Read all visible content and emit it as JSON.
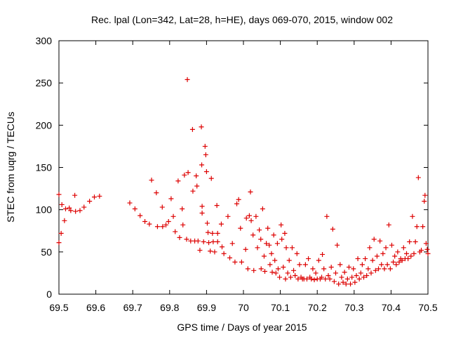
{
  "chart_data": {
    "type": "scatter",
    "title": "Rec. lpal (Lon=342, Lat=28, h=HE), days 069-070, 2015, window 002",
    "xlabel": "GPS time / Days of year 2015",
    "ylabel": "STEC from uqrg / TECUs",
    "xlim": [
      69.5,
      70.5
    ],
    "ylim": [
      0,
      300
    ],
    "xticks": [
      "69.5",
      "69.6",
      "69.7",
      "69.8",
      "69.9",
      "70",
      "70.1",
      "70.2",
      "70.3",
      "70.4",
      "70.5"
    ],
    "yticks": [
      "0",
      "50",
      "100",
      "150",
      "200",
      "250",
      "300"
    ],
    "grid": false,
    "legend": "none",
    "marker": "+",
    "color": "#dd0000",
    "series": [
      {
        "points": [
          [
            69.5,
            118
          ],
          [
            69.5,
            61
          ],
          [
            69.506,
            72
          ],
          [
            69.508,
            106
          ],
          [
            69.515,
            87
          ],
          [
            69.518,
            101
          ],
          [
            69.528,
            102
          ],
          [
            69.532,
            99
          ],
          [
            69.543,
            117
          ],
          [
            69.545,
            98
          ],
          [
            69.557,
            99
          ],
          [
            69.568,
            103
          ],
          [
            69.583,
            110
          ],
          [
            69.596,
            115
          ],
          [
            69.61,
            116
          ],
          [
            69.692,
            108
          ],
          [
            69.706,
            101
          ],
          [
            69.72,
            93
          ],
          [
            69.733,
            86
          ],
          [
            69.745,
            83
          ],
          [
            69.751,
            135
          ],
          [
            69.764,
            120
          ],
          [
            69.767,
            80
          ],
          [
            69.78,
            103
          ],
          [
            69.781,
            80
          ],
          [
            69.79,
            82
          ],
          [
            69.797,
            86
          ],
          [
            69.804,
            113
          ],
          [
            69.81,
            92
          ],
          [
            69.815,
            74
          ],
          [
            69.823,
            134
          ],
          [
            69.827,
            67
          ],
          [
            69.834,
            101
          ],
          [
            69.836,
            82
          ],
          [
            69.84,
            141
          ],
          [
            69.846,
            65
          ],
          [
            69.848,
            254
          ],
          [
            69.85,
            144
          ],
          [
            69.857,
            63
          ],
          [
            69.862,
            195
          ],
          [
            69.863,
            122
          ],
          [
            69.868,
            63
          ],
          [
            69.872,
            140
          ],
          [
            69.874,
            128
          ],
          [
            69.877,
            63
          ],
          [
            69.882,
            52
          ],
          [
            69.886,
            198
          ],
          [
            69.887,
            153
          ],
          [
            69.888,
            104
          ],
          [
            69.888,
            96
          ],
          [
            69.892,
            62
          ],
          [
            69.896,
            175
          ],
          [
            69.898,
            165
          ],
          [
            69.9,
            145
          ],
          [
            69.902,
            84
          ],
          [
            69.904,
            73
          ],
          [
            69.906,
            61
          ],
          [
            69.91,
            51
          ],
          [
            69.913,
            137
          ],
          [
            69.916,
            72
          ],
          [
            69.918,
            62
          ],
          [
            69.922,
            50
          ],
          [
            69.928,
            105
          ],
          [
            69.93,
            72
          ],
          [
            69.93,
            62
          ],
          [
            69.94,
            83
          ],
          [
            69.942,
            56
          ],
          [
            69.947,
            48
          ],
          [
            69.958,
            92
          ],
          [
            69.963,
            43
          ],
          [
            69.97,
            60
          ],
          [
            69.977,
            38
          ],
          [
            69.982,
            107
          ],
          [
            69.987,
            112
          ],
          [
            69.992,
            78
          ],
          [
            69.995,
            38
          ],
          [
            70.006,
            53
          ],
          [
            70.008,
            90
          ],
          [
            70.012,
            30
          ],
          [
            70.016,
            93
          ],
          [
            70.019,
            121
          ],
          [
            70.021,
            87
          ],
          [
            70.026,
            70
          ],
          [
            70.028,
            28
          ],
          [
            70.034,
            92
          ],
          [
            70.038,
            55
          ],
          [
            70.043,
            76
          ],
          [
            70.047,
            65
          ],
          [
            70.048,
            30
          ],
          [
            70.052,
            101
          ],
          [
            70.056,
            45
          ],
          [
            70.058,
            27
          ],
          [
            70.062,
            60
          ],
          [
            70.066,
            78
          ],
          [
            70.07,
            58
          ],
          [
            70.072,
            35
          ],
          [
            70.076,
            48
          ],
          [
            70.078,
            26
          ],
          [
            70.082,
            70
          ],
          [
            70.085,
            40
          ],
          [
            70.088,
            25
          ],
          [
            70.092,
            60
          ],
          [
            70.094,
            30
          ],
          [
            70.098,
            20
          ],
          [
            70.102,
            82
          ],
          [
            70.104,
            65
          ],
          [
            70.108,
            32
          ],
          [
            70.112,
            72
          ],
          [
            70.114,
            18
          ],
          [
            70.116,
            55
          ],
          [
            70.12,
            25
          ],
          [
            70.124,
            40
          ],
          [
            70.128,
            20
          ],
          [
            70.132,
            55
          ],
          [
            70.136,
            28
          ],
          [
            70.14,
            22
          ],
          [
            70.145,
            48
          ],
          [
            70.148,
            18
          ],
          [
            70.152,
            35
          ],
          [
            70.156,
            20
          ],
          [
            70.16,
            18
          ],
          [
            70.164,
            18
          ],
          [
            70.168,
            35
          ],
          [
            70.172,
            18
          ],
          [
            70.176,
            42
          ],
          [
            70.18,
            20
          ],
          [
            70.184,
            18
          ],
          [
            70.188,
            30
          ],
          [
            70.192,
            17
          ],
          [
            70.196,
            25
          ],
          [
            70.2,
            18
          ],
          [
            70.204,
            40
          ],
          [
            70.208,
            18
          ],
          [
            70.212,
            20
          ],
          [
            70.214,
            47
          ],
          [
            70.218,
            30
          ],
          [
            70.222,
            18
          ],
          [
            70.226,
            92
          ],
          [
            70.23,
            22
          ],
          [
            70.234,
            18
          ],
          [
            70.238,
            32
          ],
          [
            70.242,
            77
          ],
          [
            70.246,
            15
          ],
          [
            70.25,
            25
          ],
          [
            70.254,
            58
          ],
          [
            70.258,
            12
          ],
          [
            70.262,
            35
          ],
          [
            70.266,
            20
          ],
          [
            70.27,
            14
          ],
          [
            70.274,
            26
          ],
          [
            70.278,
            12
          ],
          [
            70.282,
            18
          ],
          [
            70.286,
            32
          ],
          [
            70.29,
            12
          ],
          [
            70.294,
            20
          ],
          [
            70.298,
            30
          ],
          [
            70.302,
            14
          ],
          [
            70.306,
            22
          ],
          [
            70.31,
            42
          ],
          [
            70.314,
            18
          ],
          [
            70.318,
            25
          ],
          [
            70.322,
            35
          ],
          [
            70.326,
            20
          ],
          [
            70.33,
            42
          ],
          [
            70.334,
            22
          ],
          [
            70.338,
            30
          ],
          [
            70.342,
            55
          ],
          [
            70.346,
            25
          ],
          [
            70.35,
            40
          ],
          [
            70.354,
            65
          ],
          [
            70.358,
            28
          ],
          [
            70.362,
            45
          ],
          [
            70.366,
            30
          ],
          [
            70.37,
            63
          ],
          [
            70.374,
            35
          ],
          [
            70.378,
            48
          ],
          [
            70.382,
            30
          ],
          [
            70.386,
            55
          ],
          [
            70.39,
            35
          ],
          [
            70.394,
            82
          ],
          [
            70.398,
            30
          ],
          [
            70.402,
            58
          ],
          [
            70.406,
            38
          ],
          [
            70.41,
            45
          ],
          [
            70.414,
            35
          ],
          [
            70.418,
            50
          ],
          [
            70.422,
            38
          ],
          [
            70.426,
            42
          ],
          [
            70.43,
            40
          ],
          [
            70.434,
            55
          ],
          [
            70.438,
            42
          ],
          [
            70.442,
            48
          ],
          [
            70.446,
            42
          ],
          [
            70.45,
            62
          ],
          [
            70.454,
            45
          ],
          [
            70.458,
            92
          ],
          [
            70.462,
            48
          ],
          [
            70.466,
            62
          ],
          [
            70.47,
            80
          ],
          [
            70.474,
            138
          ],
          [
            70.478,
            50
          ],
          [
            70.482,
            52
          ],
          [
            70.486,
            80
          ],
          [
            70.49,
            110
          ],
          [
            70.492,
            117
          ],
          [
            70.495,
            60
          ],
          [
            70.498,
            53
          ],
          [
            70.5,
            48
          ]
        ]
      }
    ]
  }
}
